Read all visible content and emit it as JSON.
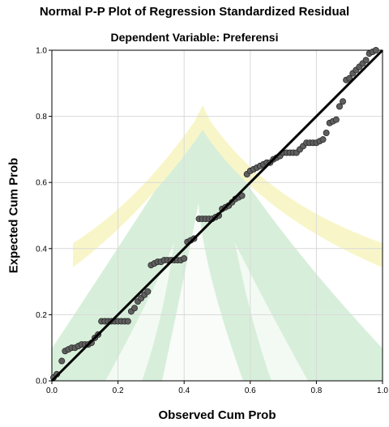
{
  "chart_data": {
    "type": "scatter",
    "title": "Normal P-P Plot of Regression Standardized Residual",
    "subtitle": "Dependent Variable: Preferensi",
    "xlabel": "Observed Cum Prob",
    "ylabel": "Expected Cum Prob",
    "xlim": [
      0,
      1
    ],
    "ylim": [
      0,
      1
    ],
    "xticks": [
      "0.0",
      "0.2",
      "0.4",
      "0.6",
      "0.8",
      "1.0"
    ],
    "yticks": [
      "0.0",
      "0.2",
      "0.4",
      "0.6",
      "0.8",
      "1.0"
    ],
    "grid": true,
    "reference_line": {
      "x": [
        0,
        1
      ],
      "y": [
        0,
        1
      ],
      "color": "#000000"
    },
    "series": [
      {
        "marker_color": "#5f5f5f",
        "points": [
          [
            0.005,
            0.01
          ],
          [
            0.015,
            0.02
          ],
          [
            0.03,
            0.06
          ],
          [
            0.04,
            0.09
          ],
          [
            0.05,
            0.095
          ],
          [
            0.06,
            0.1
          ],
          [
            0.07,
            0.1
          ],
          [
            0.08,
            0.105
          ],
          [
            0.09,
            0.11
          ],
          [
            0.1,
            0.11
          ],
          [
            0.11,
            0.11
          ],
          [
            0.12,
            0.115
          ],
          [
            0.13,
            0.13
          ],
          [
            0.14,
            0.14
          ],
          [
            0.15,
            0.18
          ],
          [
            0.16,
            0.18
          ],
          [
            0.17,
            0.18
          ],
          [
            0.18,
            0.18
          ],
          [
            0.19,
            0.18
          ],
          [
            0.2,
            0.18
          ],
          [
            0.21,
            0.18
          ],
          [
            0.22,
            0.18
          ],
          [
            0.23,
            0.18
          ],
          [
            0.24,
            0.21
          ],
          [
            0.25,
            0.22
          ],
          [
            0.26,
            0.24
          ],
          [
            0.27,
            0.25
          ],
          [
            0.28,
            0.26
          ],
          [
            0.29,
            0.27
          ],
          [
            0.3,
            0.35
          ],
          [
            0.31,
            0.355
          ],
          [
            0.32,
            0.36
          ],
          [
            0.33,
            0.36
          ],
          [
            0.34,
            0.365
          ],
          [
            0.35,
            0.365
          ],
          [
            0.36,
            0.365
          ],
          [
            0.37,
            0.365
          ],
          [
            0.38,
            0.365
          ],
          [
            0.39,
            0.365
          ],
          [
            0.4,
            0.37
          ],
          [
            0.41,
            0.42
          ],
          [
            0.42,
            0.425
          ],
          [
            0.43,
            0.43
          ],
          [
            0.445,
            0.49
          ],
          [
            0.455,
            0.49
          ],
          [
            0.465,
            0.49
          ],
          [
            0.475,
            0.49
          ],
          [
            0.485,
            0.49
          ],
          [
            0.495,
            0.495
          ],
          [
            0.505,
            0.5
          ],
          [
            0.515,
            0.52
          ],
          [
            0.525,
            0.525
          ],
          [
            0.535,
            0.53
          ],
          [
            0.545,
            0.54
          ],
          [
            0.555,
            0.55
          ],
          [
            0.565,
            0.555
          ],
          [
            0.575,
            0.56
          ],
          [
            0.59,
            0.625
          ],
          [
            0.6,
            0.635
          ],
          [
            0.61,
            0.64
          ],
          [
            0.62,
            0.645
          ],
          [
            0.63,
            0.65
          ],
          [
            0.64,
            0.655
          ],
          [
            0.65,
            0.66
          ],
          [
            0.66,
            0.66
          ],
          [
            0.67,
            0.67
          ],
          [
            0.68,
            0.675
          ],
          [
            0.69,
            0.68
          ],
          [
            0.7,
            0.69
          ],
          [
            0.71,
            0.69
          ],
          [
            0.72,
            0.69
          ],
          [
            0.73,
            0.69
          ],
          [
            0.74,
            0.69
          ],
          [
            0.75,
            0.7
          ],
          [
            0.76,
            0.71
          ],
          [
            0.77,
            0.72
          ],
          [
            0.78,
            0.72
          ],
          [
            0.79,
            0.72
          ],
          [
            0.8,
            0.72
          ],
          [
            0.81,
            0.725
          ],
          [
            0.82,
            0.73
          ],
          [
            0.83,
            0.75
          ],
          [
            0.84,
            0.78
          ],
          [
            0.85,
            0.785
          ],
          [
            0.86,
            0.79
          ],
          [
            0.87,
            0.83
          ],
          [
            0.88,
            0.845
          ],
          [
            0.89,
            0.91
          ],
          [
            0.9,
            0.915
          ],
          [
            0.91,
            0.93
          ],
          [
            0.92,
            0.94
          ],
          [
            0.93,
            0.95
          ],
          [
            0.94,
            0.96
          ],
          [
            0.95,
            0.97
          ],
          [
            0.96,
            0.99
          ],
          [
            0.97,
            0.995
          ],
          [
            0.98,
            1.0
          ]
        ]
      }
    ]
  }
}
